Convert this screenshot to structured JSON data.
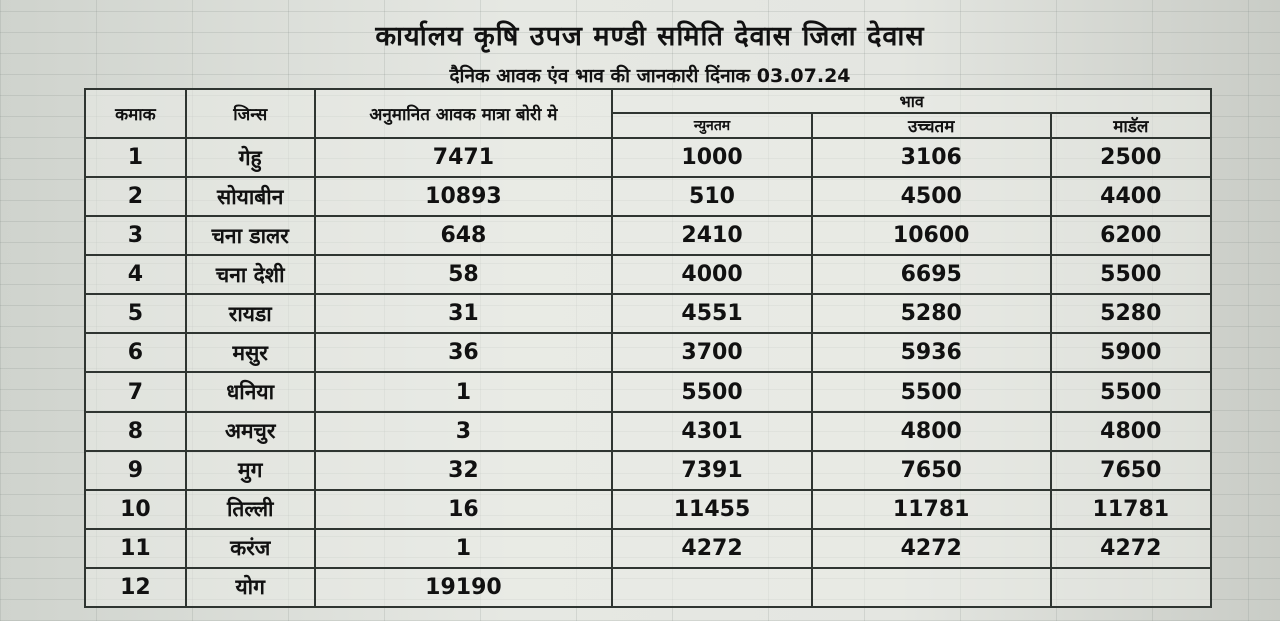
{
  "header": {
    "title": "कार्यालय कृषि उपज मण्डी समिति देवास जिला देवास",
    "subtitle": "दैनिक आवक एंव भाव की जानकारी दिंनाक 03.07.24"
  },
  "table": {
    "columns": {
      "serial": "कमाक",
      "crop": "जिन्स",
      "arrival": "अनुमानित आवक मात्रा बोरी मे",
      "price_group": "भाव",
      "min": "न्युनतम",
      "max": "उच्चतम",
      "modal": "माडॅल"
    },
    "rows": [
      {
        "no": "1",
        "crop": "गेहु",
        "arrival": "7471",
        "min": "1000",
        "max": "3106",
        "modal": "2500"
      },
      {
        "no": "2",
        "crop": "सोयाबीन",
        "arrival": "10893",
        "min": "510",
        "max": "4500",
        "modal": "4400"
      },
      {
        "no": "3",
        "crop": "चना डालर",
        "arrival": "648",
        "min": "2410",
        "max": "10600",
        "modal": "6200"
      },
      {
        "no": "4",
        "crop": "चना देशी",
        "arrival": "58",
        "min": "4000",
        "max": "6695",
        "modal": "5500"
      },
      {
        "no": "5",
        "crop": "रायडा",
        "arrival": "31",
        "min": "4551",
        "max": "5280",
        "modal": "5280"
      },
      {
        "no": "6",
        "crop": "मसुर",
        "arrival": "36",
        "min": "3700",
        "max": "5936",
        "modal": "5900"
      },
      {
        "no": "7",
        "crop": "धनिया",
        "arrival": "1",
        "min": "5500",
        "max": "5500",
        "modal": "5500"
      },
      {
        "no": "8",
        "crop": "अमचुर",
        "arrival": "3",
        "min": "4301",
        "max": "4800",
        "modal": "4800"
      },
      {
        "no": "9",
        "crop": "मुग",
        "arrival": "32",
        "min": "7391",
        "max": "7650",
        "modal": "7650"
      },
      {
        "no": "10",
        "crop": "तिल्ली",
        "arrival": "16",
        "min": "11455",
        "max": "11781",
        "modal": "11781"
      },
      {
        "no": "11",
        "crop": "करंज",
        "arrival": "1",
        "min": "4272",
        "max": "4272",
        "modal": "4272"
      }
    ],
    "total": {
      "no": "12",
      "crop": "योग",
      "arrival": "19190",
      "min": "",
      "max": "",
      "modal": ""
    }
  }
}
